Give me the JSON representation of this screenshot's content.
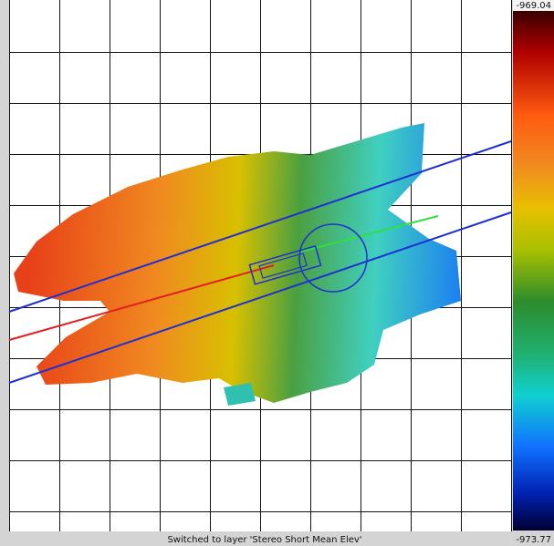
{
  "colorbar": {
    "max_label": "-969.04",
    "min_label": "-973.77"
  },
  "status_bar": {
    "message": "Switched to layer 'Stereo Short Mean Elev'"
  }
}
